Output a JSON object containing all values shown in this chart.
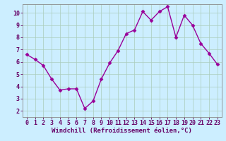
{
  "x": [
    0,
    1,
    2,
    3,
    4,
    5,
    6,
    7,
    8,
    9,
    10,
    11,
    12,
    13,
    14,
    15,
    16,
    17,
    18,
    19,
    20,
    21,
    22,
    23
  ],
  "y": [
    6.6,
    6.2,
    5.7,
    4.6,
    3.7,
    3.8,
    3.8,
    2.2,
    2.8,
    4.6,
    5.9,
    6.9,
    8.3,
    8.6,
    10.1,
    9.4,
    10.1,
    10.5,
    8.0,
    9.8,
    9.0,
    7.5,
    6.7,
    5.8
  ],
  "line_color": "#990099",
  "marker": "D",
  "marker_size": 2.5,
  "bg_color": "#cceeff",
  "grid_color": "#aaccbb",
  "xlabel": "Windchill (Refroidissement éolien,°C)",
  "xlabel_color": "#660066",
  "tick_color": "#660066",
  "ylim": [
    1.5,
    10.7
  ],
  "xlim": [
    -0.5,
    23.5
  ],
  "yticks": [
    2,
    3,
    4,
    5,
    6,
    7,
    8,
    9,
    10
  ],
  "xticks": [
    0,
    1,
    2,
    3,
    4,
    5,
    6,
    7,
    8,
    9,
    10,
    11,
    12,
    13,
    14,
    15,
    16,
    17,
    18,
    19,
    20,
    21,
    22,
    23
  ],
  "xlabel_fontsize": 6.5,
  "tick_fontsize": 6,
  "linewidth": 1.0
}
